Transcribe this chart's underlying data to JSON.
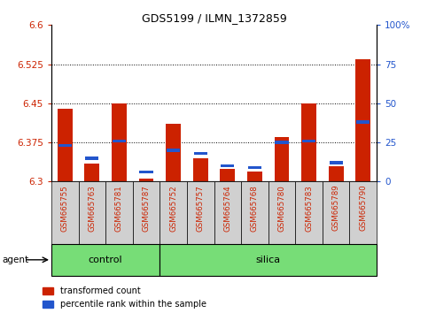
{
  "title": "GDS5199 / ILMN_1372859",
  "samples": [
    "GSM665755",
    "GSM665763",
    "GSM665781",
    "GSM665787",
    "GSM665752",
    "GSM665757",
    "GSM665764",
    "GSM665768",
    "GSM665780",
    "GSM665783",
    "GSM665789",
    "GSM665790"
  ],
  "red_values": [
    6.44,
    6.335,
    6.449,
    6.305,
    6.41,
    6.345,
    6.325,
    6.32,
    6.385,
    6.449,
    6.33,
    6.535
  ],
  "blue_values": [
    23,
    15,
    26,
    6,
    20,
    18,
    10,
    9,
    25,
    26,
    12,
    38
  ],
  "ylim_left": [
    6.3,
    6.6
  ],
  "ylim_right": [
    0,
    100
  ],
  "yticks_left": [
    6.3,
    6.375,
    6.45,
    6.525,
    6.6
  ],
  "yticks_right": [
    0,
    25,
    50,
    75,
    100
  ],
  "ytick_labels_left": [
    "6.3",
    "6.375",
    "6.45",
    "6.525",
    "6.6"
  ],
  "ytick_labels_right": [
    "0",
    "25",
    "50",
    "75",
    "100%"
  ],
  "grid_values": [
    6.375,
    6.45,
    6.525
  ],
  "red_color": "#cc2200",
  "blue_color": "#2255cc",
  "control_color": "#77dd77",
  "silica_color": "#77dd77",
  "title_fontsize": 9,
  "legend_red": "transformed count",
  "legend_blue": "percentile rank within the sample",
  "base_value": 6.3,
  "bar_width": 0.55
}
